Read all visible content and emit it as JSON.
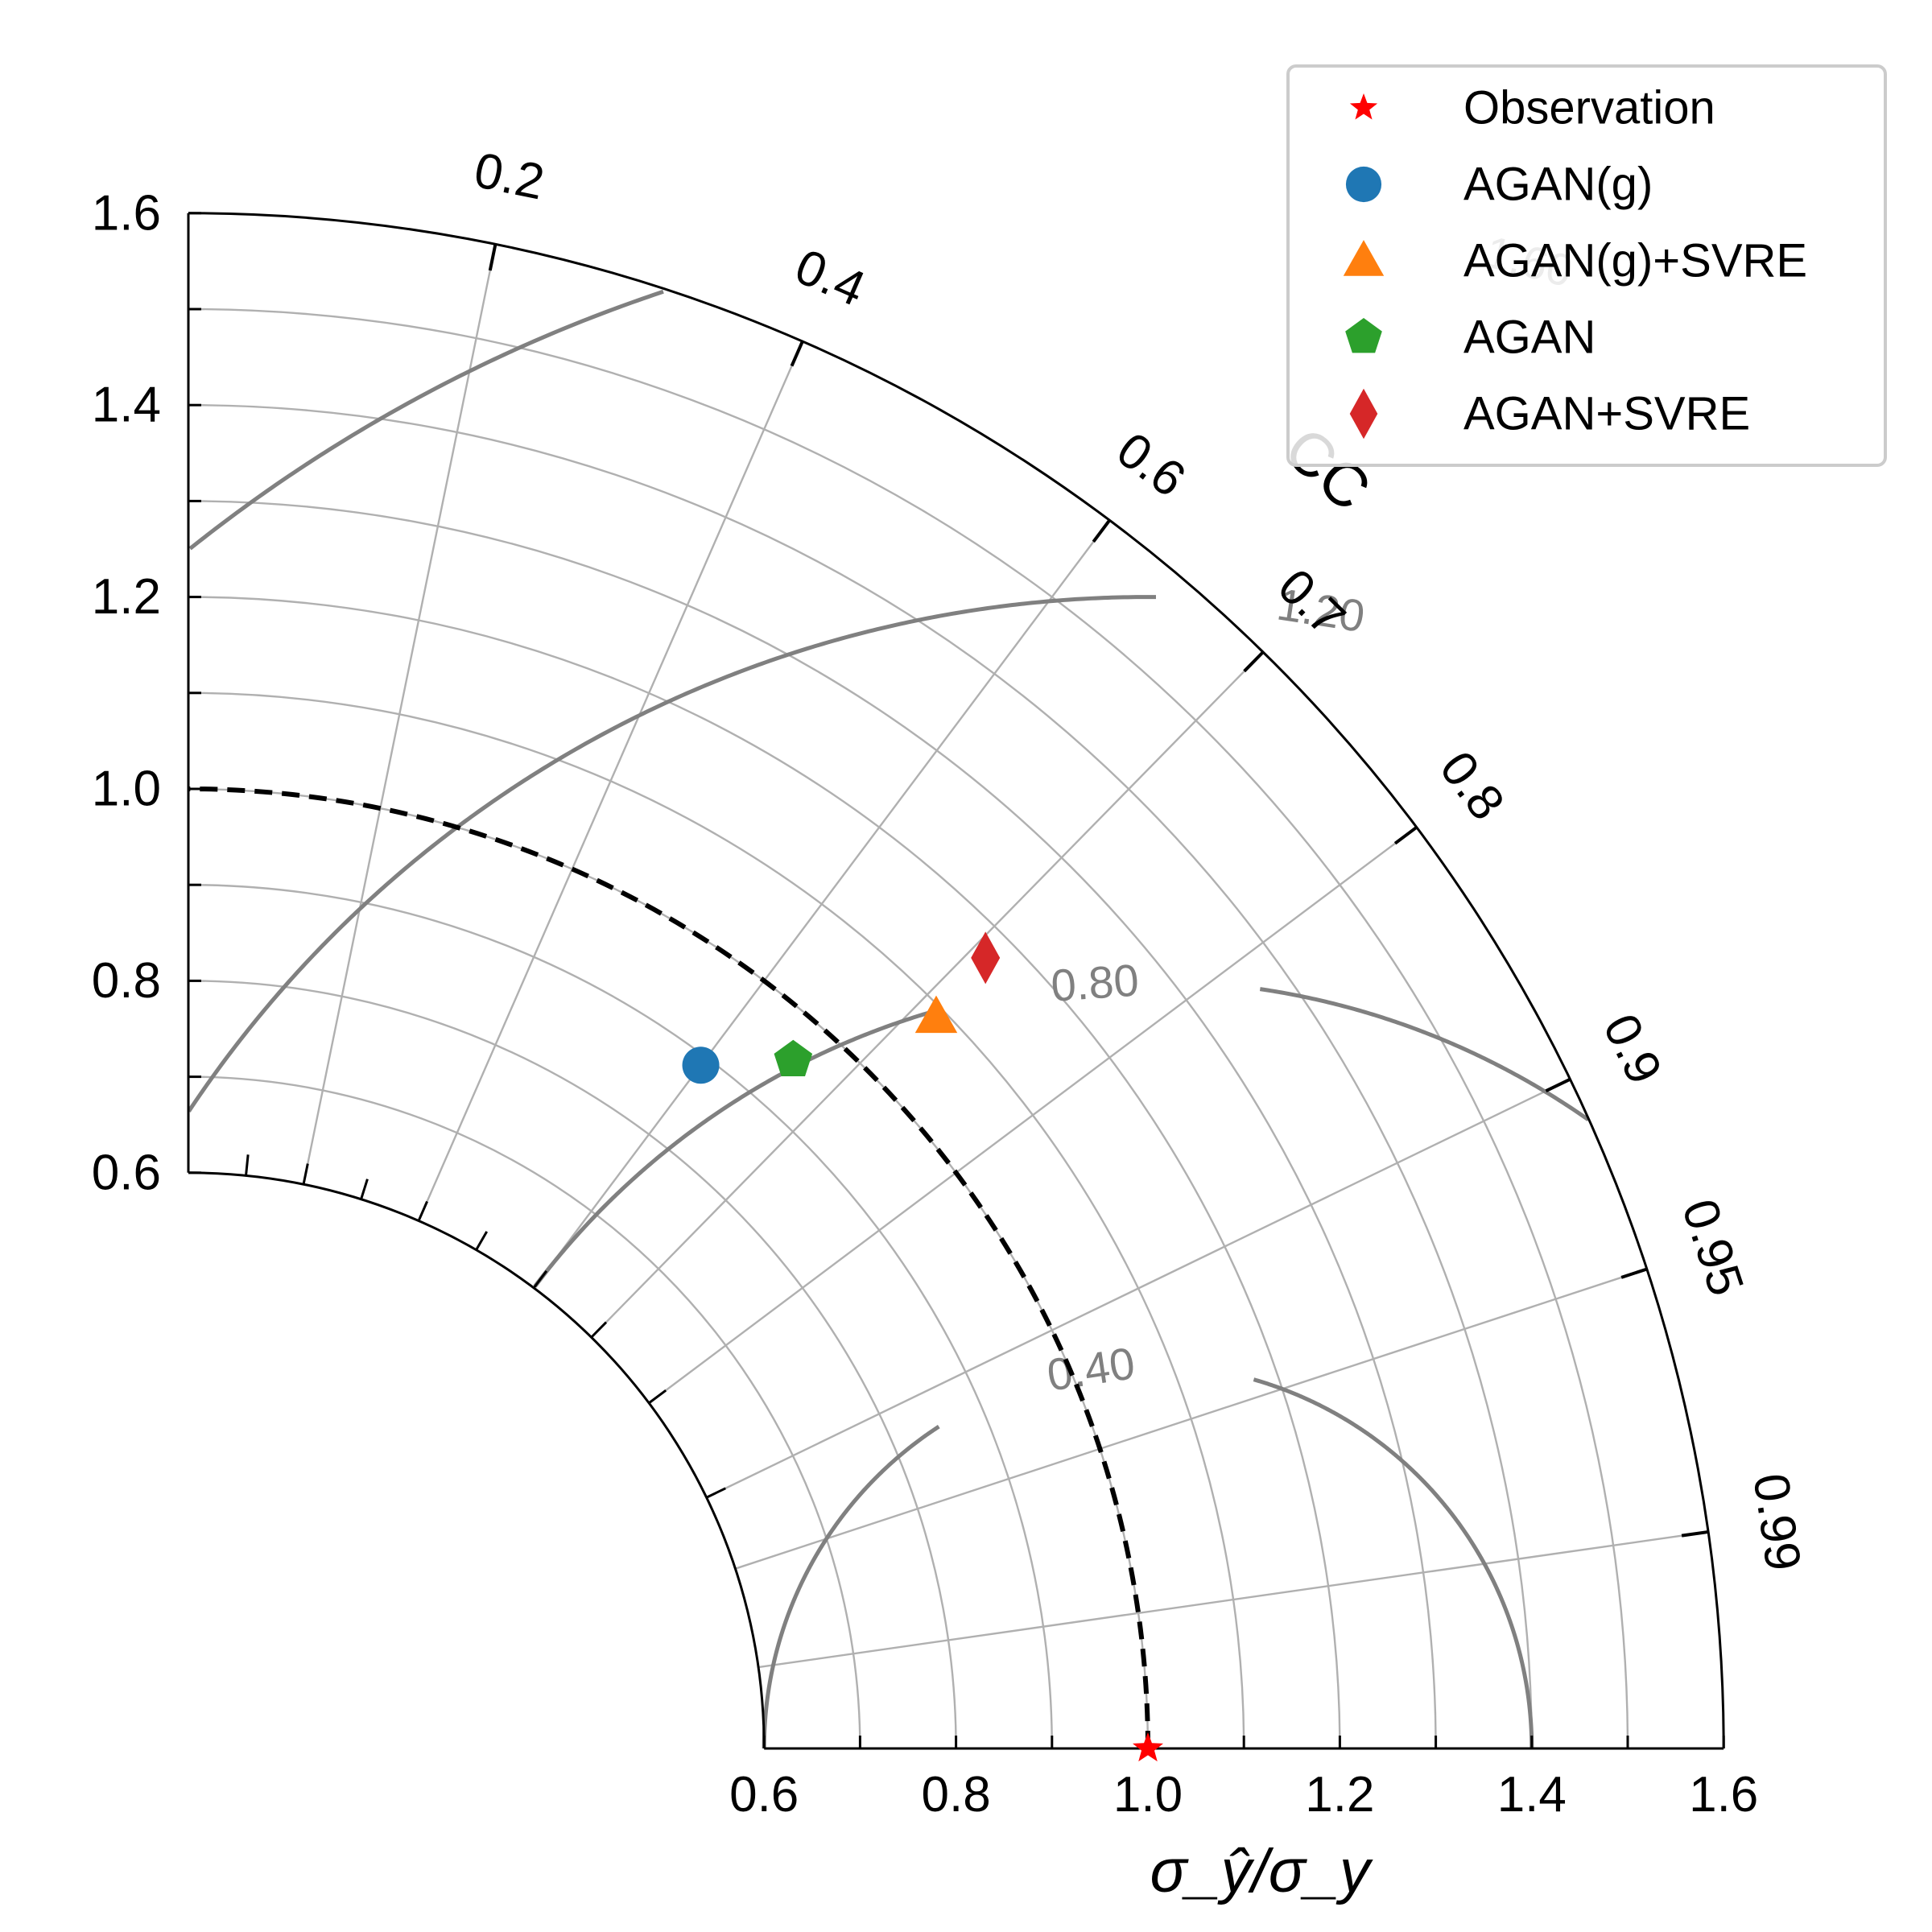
{
  "chart_data": {
    "type": "taylor-diagram",
    "xlabel": "σ_ŷ/σ_y",
    "correlation_axis_label": "CC",
    "std_range": [
      0.6,
      1.6
    ],
    "std_ticks": [
      "0.6",
      "0.8",
      "1.0",
      "1.2",
      "1.4",
      "1.6"
    ],
    "cc_ticks": [
      {
        "value": 0.2,
        "label": "0.2"
      },
      {
        "value": 0.4,
        "label": "0.4"
      },
      {
        "value": 0.6,
        "label": "0.6"
      },
      {
        "value": 0.7,
        "label": "0.7"
      },
      {
        "value": 0.8,
        "label": "0.8"
      },
      {
        "value": 0.9,
        "label": "0.9"
      },
      {
        "value": 0.95,
        "label": "0.95"
      },
      {
        "value": 0.99,
        "label": "0.99"
      }
    ],
    "rms_contours": [
      {
        "value": 0.4,
        "label": "0.40"
      },
      {
        "value": 0.8,
        "label": "0.80"
      },
      {
        "value": 1.2,
        "label": "1.20"
      },
      {
        "value": 1.6,
        "label": "1.60"
      }
    ],
    "reference_std": 1.0,
    "series": [
      {
        "name": "Observation",
        "marker": "star",
        "color": "#ff0000",
        "std": 1.0,
        "cc": 1.0
      },
      {
        "name": "AGAN(g)",
        "marker": "circle",
        "color": "#1f77b4",
        "std": 0.89,
        "cc": 0.6
      },
      {
        "name": "AGAN(g)+SVRE",
        "marker": "triangle",
        "color": "#ff7f0e",
        "std": 1.09,
        "cc": 0.715
      },
      {
        "name": "AGAN",
        "marker": "pentagon",
        "color": "#2ca02c",
        "std": 0.955,
        "cc": 0.66
      },
      {
        "name": "AGAN+SVRE",
        "marker": "diamond",
        "color": "#d62728",
        "std": 1.17,
        "cc": 0.71
      }
    ],
    "legend_position": "top-right",
    "grid": true
  }
}
